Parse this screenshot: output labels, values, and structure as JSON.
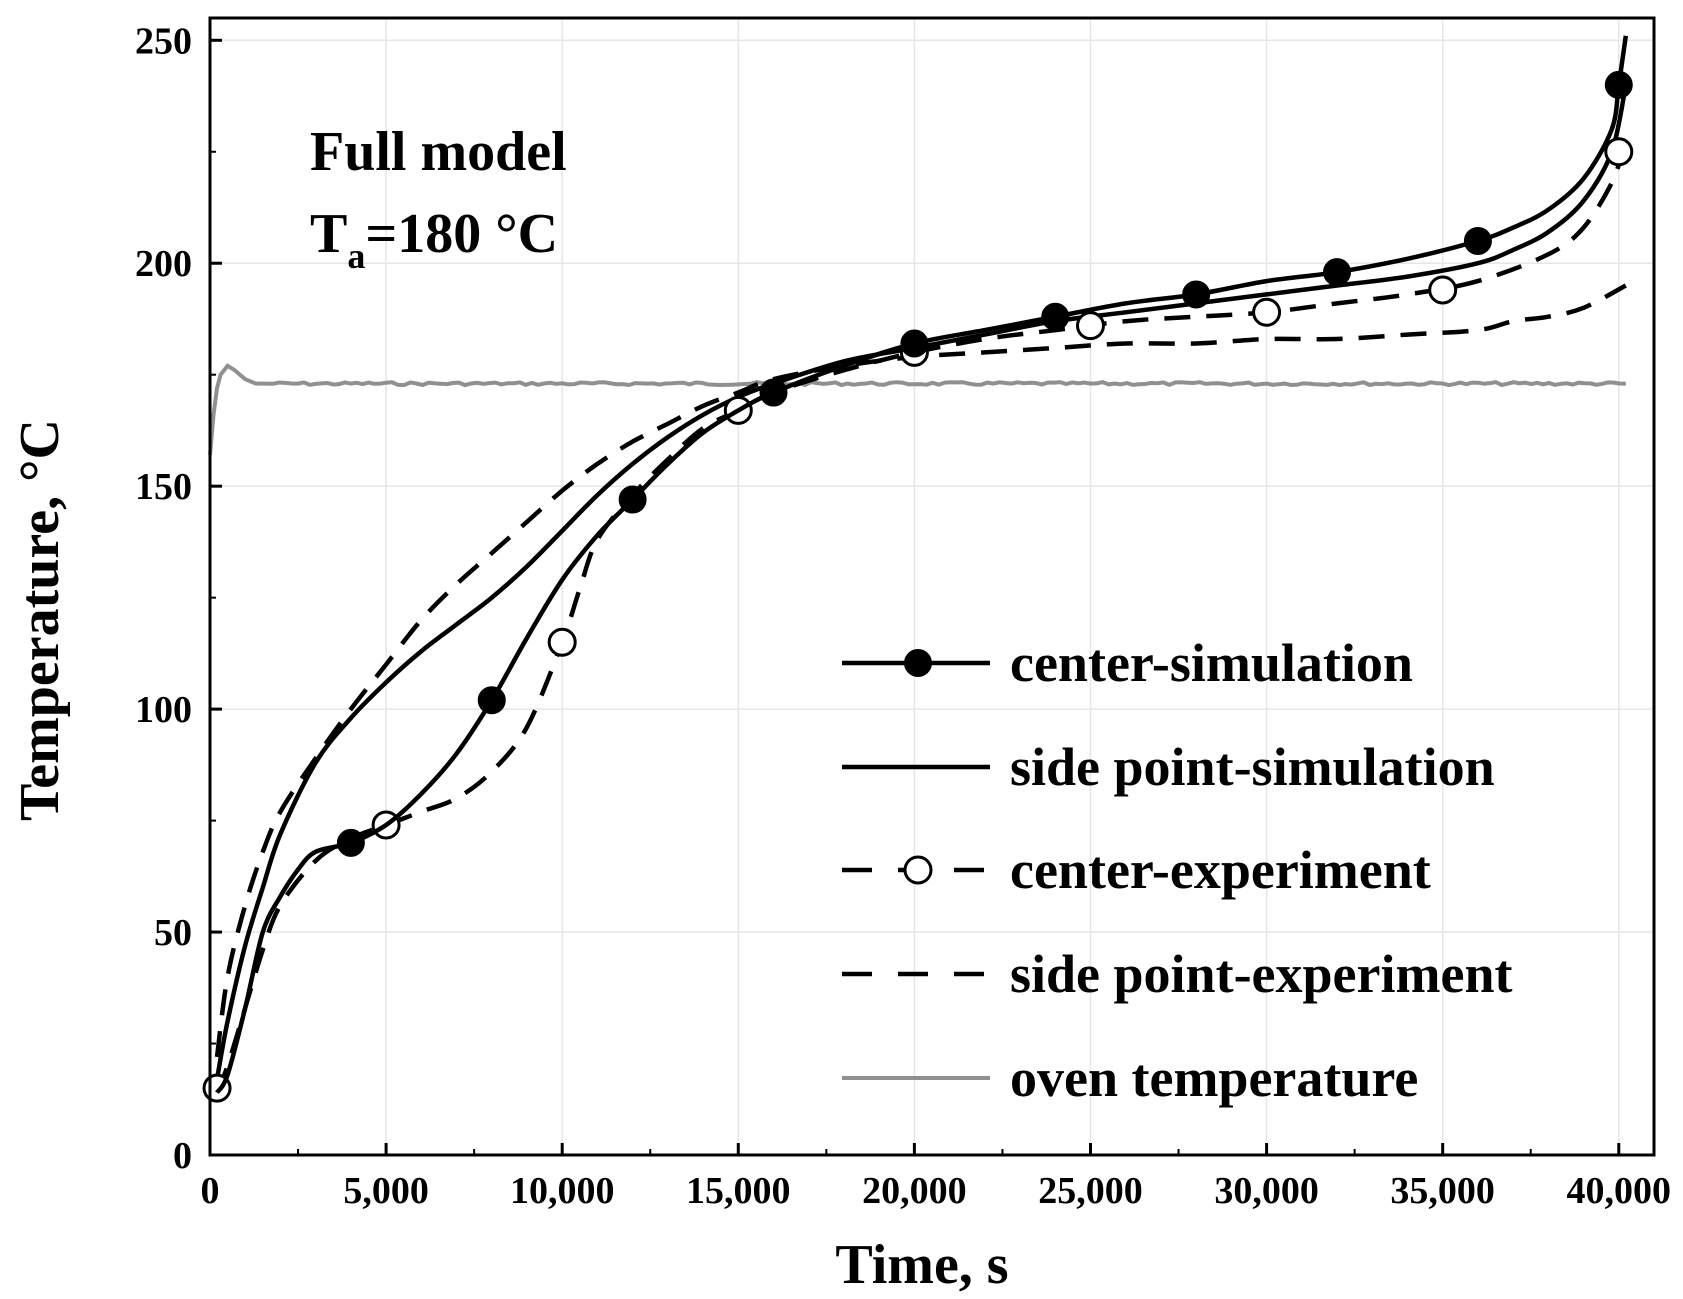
{
  "chart_data": {
    "type": "line",
    "annotation": {
      "line1": "Full model",
      "ta_prefix": "T",
      "ta_sub": "a",
      "ta_value": "=180 °C"
    },
    "xlabel": "Time,   s",
    "ylabel": "Temperature,   °C",
    "xlim": [
      0,
      41000
    ],
    "ylim": [
      0,
      255
    ],
    "x_ticks": [
      0,
      5000,
      10000,
      15000,
      20000,
      25000,
      30000,
      35000,
      40000
    ],
    "x_tick_labels": [
      "0",
      "5,000",
      "10,000",
      "15,000",
      "20,000",
      "25,000",
      "30,000",
      "35,000",
      "40,000"
    ],
    "y_ticks": [
      0,
      50,
      100,
      150,
      200,
      250
    ],
    "y_tick_labels": [
      "0",
      "50",
      "100",
      "150",
      "200",
      "250"
    ],
    "legend_position": "center-right",
    "series": [
      {
        "name": "center-simulation",
        "style": "solid",
        "marker": "filled-circle",
        "color": "#000000",
        "x": [
          200,
          500,
          1000,
          1500,
          2000,
          2500,
          3000,
          4000,
          5000,
          6000,
          7000,
          8000,
          9000,
          10000,
          11000,
          12000,
          13000,
          14000,
          15000,
          16000,
          18000,
          20000,
          22000,
          24000,
          26000,
          28000,
          30000,
          32000,
          34000,
          36000,
          37000,
          38000,
          39000,
          39800,
          40000,
          40200
        ],
        "y": [
          14,
          18,
          33,
          50,
          58,
          64,
          68,
          70,
          74,
          81,
          90,
          102,
          116,
          129,
          139,
          147,
          155,
          162,
          167,
          171,
          177,
          182,
          185,
          188,
          191,
          193,
          196,
          198,
          201,
          205,
          208,
          212,
          219,
          230,
          240,
          251
        ],
        "marker_x": [
          4000,
          8000,
          12000,
          16000,
          20000,
          24000,
          28000,
          32000,
          36000,
          40000
        ],
        "marker_y": [
          70,
          102,
          147,
          171,
          182,
          188,
          193,
          198,
          205,
          240
        ]
      },
      {
        "name": "side point-simulation",
        "style": "solid",
        "marker": "none",
        "color": "#000000",
        "x": [
          200,
          500,
          1000,
          1500,
          2000,
          3000,
          4000,
          5000,
          6000,
          7000,
          8000,
          9000,
          10000,
          11000,
          12000,
          13000,
          14000,
          15000,
          16000,
          18000,
          20000,
          22000,
          24000,
          26000,
          28000,
          30000,
          32000,
          34000,
          36000,
          37000,
          38000,
          39000,
          39800,
          40200
        ],
        "y": [
          17,
          30,
          47,
          60,
          72,
          88,
          98,
          106,
          113,
          119,
          125,
          132,
          140,
          148,
          155,
          161,
          166,
          170,
          173,
          178,
          181,
          184,
          187,
          189,
          191,
          193,
          195,
          197,
          200,
          203,
          207,
          214,
          225,
          240
        ],
        "marker_x": [],
        "marker_y": []
      },
      {
        "name": "center-experiment",
        "style": "dashed",
        "marker": "open-circle",
        "color": "#000000",
        "x": [
          200,
          500,
          1000,
          1500,
          2000,
          3000,
          4000,
          5000,
          6000,
          7000,
          8000,
          9000,
          10000,
          10500,
          11000,
          12000,
          13000,
          14000,
          15000,
          16000,
          18000,
          20000,
          22000,
          24000,
          26000,
          28000,
          30000,
          32000,
          34000,
          36000,
          38000,
          39000,
          39800,
          40100
        ],
        "y": [
          14,
          20,
          33,
          46,
          56,
          66,
          71,
          74,
          77,
          80,
          86,
          96,
          115,
          127,
          138,
          148,
          156,
          163,
          167,
          171,
          176,
          180,
          183,
          185,
          187,
          188,
          189,
          191,
          193,
          196,
          202,
          208,
          218,
          225
        ],
        "marker_x": [
          200,
          5000,
          10000,
          15000,
          20000,
          25000,
          30000,
          35000,
          40000
        ],
        "marker_y": [
          15,
          74,
          115,
          167,
          180,
          186,
          189,
          194,
          225
        ]
      },
      {
        "name": "side point-experiment",
        "style": "dashed",
        "marker": "none",
        "color": "#000000",
        "x": [
          200,
          500,
          1000,
          1500,
          2000,
          3000,
          4000,
          5000,
          6000,
          7000,
          8000,
          9000,
          10000,
          11000,
          12000,
          13000,
          14000,
          15000,
          16000,
          18000,
          20000,
          22000,
          24000,
          26000,
          28000,
          30000,
          32000,
          34000,
          36000,
          37000,
          38000,
          39000,
          40200
        ],
        "y": [
          22,
          40,
          56,
          68,
          77,
          89,
          100,
          110,
          120,
          128,
          135,
          142,
          149,
          155,
          160,
          164,
          168,
          171,
          174,
          177,
          179,
          180,
          181,
          182,
          182,
          183,
          183,
          184,
          185,
          187,
          188,
          190,
          195
        ],
        "marker_x": [],
        "marker_y": []
      },
      {
        "name": "oven temperature",
        "style": "solid",
        "marker": "none",
        "color": "#909090",
        "x": [
          0,
          100,
          200,
          300,
          500,
          700,
          1000,
          1300,
          1600,
          2500,
          5000,
          10000,
          15000,
          20000,
          25000,
          30000,
          35000,
          40200
        ],
        "y": [
          157,
          166,
          172,
          175,
          177,
          176,
          174,
          173,
          173,
          173,
          173,
          173,
          173,
          173,
          173,
          173,
          173,
          173
        ],
        "marker_x": [],
        "marker_y": []
      }
    ]
  }
}
